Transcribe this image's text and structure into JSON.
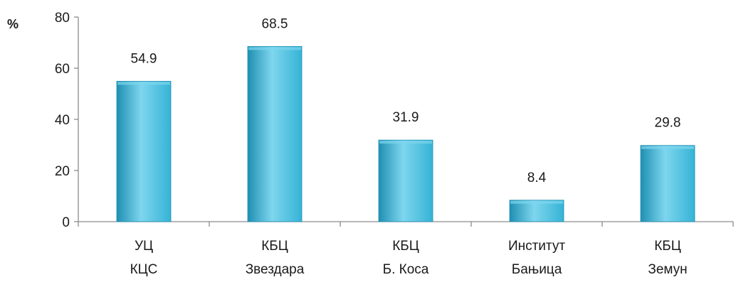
{
  "chart_data": {
    "type": "bar",
    "title": "",
    "xlabel": "",
    "ylabel": "%",
    "ylim": [
      0,
      80
    ],
    "yticks": [
      0,
      20,
      40,
      60,
      80
    ],
    "grid": false,
    "legend": "none",
    "categories": [
      [
        "УЦ",
        "КЦС"
      ],
      [
        "КБЦ",
        "Звездара"
      ],
      [
        "КБЦ",
        "Б. Коса"
      ],
      [
        "Институт",
        "Бањица"
      ],
      [
        "КБЦ",
        "Земун"
      ]
    ],
    "values": [
      54.9,
      68.5,
      31.9,
      8.4,
      29.8
    ],
    "value_labels": [
      "54.9",
      "68.5",
      "31.9",
      "8.4",
      "29.8"
    ],
    "colors": {
      "bar": "#35b3d6",
      "bar_light": "#7ed6ee",
      "bar_dark": "#1f8fb2",
      "axis": "#8c8c8c"
    }
  }
}
